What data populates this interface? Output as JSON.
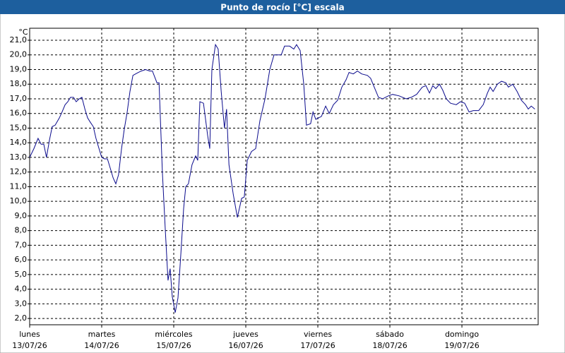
{
  "chart_data": {
    "type": "line",
    "title": "Punto de rocío [°C] escala",
    "y_label": "°C",
    "color": "#0a0a8c",
    "grid": true,
    "xlim": [
      0,
      169.4
    ],
    "ylim": [
      1.57,
      21.82
    ],
    "xticks": [
      {
        "value": 0,
        "label": "lunes",
        "date": "13/07/26"
      },
      {
        "value": 24,
        "label": "martes",
        "date": "14/07/26"
      },
      {
        "value": 48,
        "label": "miércoles",
        "date": "15/07/26"
      },
      {
        "value": 72,
        "label": "jueves",
        "date": "16/07/26"
      },
      {
        "value": 96,
        "label": "viernes",
        "date": "17/07/26"
      },
      {
        "value": 120,
        "label": "sábado",
        "date": "18/07/26"
      },
      {
        "value": 144,
        "label": "domingo",
        "date": "19/07/26"
      }
    ],
    "yticks": [
      {
        "value": 2,
        "label": "2,0"
      },
      {
        "value": 3,
        "label": "3,0"
      },
      {
        "value": 4,
        "label": "4,0"
      },
      {
        "value": 5,
        "label": "5,0"
      },
      {
        "value": 6,
        "label": "6,0"
      },
      {
        "value": 7,
        "label": "7,0"
      },
      {
        "value": 8,
        "label": "8,0"
      },
      {
        "value": 9,
        "label": "9,0"
      },
      {
        "value": 10,
        "label": "10,0"
      },
      {
        "value": 11,
        "label": "11,0"
      },
      {
        "value": 12,
        "label": "12,0"
      },
      {
        "value": 13,
        "label": "13,0"
      },
      {
        "value": 14,
        "label": "14,0"
      },
      {
        "value": 15,
        "label": "15,0"
      },
      {
        "value": 16,
        "label": "16,0"
      },
      {
        "value": 17,
        "label": "17,0"
      },
      {
        "value": 18,
        "label": "18,0"
      },
      {
        "value": 19,
        "label": "19,0"
      },
      {
        "value": 20,
        "label": "20,0"
      },
      {
        "value": 21,
        "label": "21,0"
      }
    ],
    "x": [
      0,
      1.4,
      2.8,
      3.8,
      4.7,
      5.6,
      6.6,
      7.5,
      8.5,
      9.9,
      10.8,
      11.8,
      12.7,
      13.6,
      14.6,
      15.5,
      16.5,
      17.4,
      18.4,
      19.3,
      20.2,
      21.2,
      22.1,
      23.1,
      24.0,
      24.9,
      25.9,
      26.8,
      27.8,
      28.7,
      29.6,
      30.6,
      31.5,
      32.5,
      33.4,
      34.4,
      35.3,
      36.2,
      37.2,
      38.6,
      40.0,
      40.9,
      42.4,
      43.1,
      44.2,
      45.2,
      46.1,
      46.8,
      47.5,
      48.5,
      49.4,
      50.4,
      51.3,
      52.0,
      52.9,
      54.1,
      55.3,
      56.0,
      56.7,
      57.9,
      59.3,
      60.0,
      60.7,
      61.9,
      62.8,
      63.8,
      64.9,
      65.6,
      66.4,
      67.8,
      69.2,
      70.6,
      71.5,
      72.5,
      73.9,
      75.3,
      76.7,
      78.4,
      80.0,
      81.4,
      83.8,
      84.9,
      86.6,
      88.0,
      88.9,
      90.1,
      91.3,
      92.2,
      93.6,
      94.4,
      95.3,
      97.2,
      98.6,
      99.8,
      101.2,
      102.6,
      104.0,
      105.4,
      106.4,
      107.8,
      109.2,
      110.6,
      112.5,
      113.6,
      114.8,
      116.2,
      117.6,
      119.5,
      120.9,
      123.1,
      125.4,
      127.1,
      128.9,
      130.8,
      132.0,
      133.2,
      134.3,
      135.3,
      136.5,
      137.6,
      138.8,
      140.2,
      142.1,
      143.5,
      144.9,
      146.4,
      147.8,
      149.6,
      151.1,
      152.5,
      153.4,
      154.4,
      155.8,
      157.2,
      158.6,
      159.5,
      160.9,
      162.4,
      163.8,
      165.2,
      166.1,
      167.1,
      168.3
    ],
    "values": [
      13.0,
      13.6,
      14.3,
      13.9,
      13.9,
      13.0,
      14.2,
      15.1,
      15.2,
      15.7,
      16.1,
      16.6,
      16.8,
      17.1,
      17.1,
      16.8,
      17.0,
      17.1,
      16.3,
      15.7,
      15.4,
      15.1,
      14.3,
      13.6,
      13.0,
      12.9,
      12.9,
      12.3,
      11.6,
      11.2,
      11.8,
      13.6,
      14.9,
      16.1,
      17.5,
      18.6,
      18.7,
      18.8,
      18.9,
      19.0,
      18.9,
      18.9,
      18.1,
      18.1,
      12.0,
      8.0,
      4.6,
      5.4,
      3.5,
      2.4,
      3.4,
      6.5,
      9.5,
      11.0,
      11.2,
      12.5,
      13.1,
      12.8,
      16.8,
      16.7,
      14.5,
      13.6,
      19.0,
      20.7,
      20.4,
      17.5,
      15.0,
      16.3,
      12.5,
      10.5,
      8.9,
      10.2,
      10.3,
      12.8,
      13.4,
      13.6,
      15.5,
      17.0,
      19.0,
      20.0,
      20.0,
      20.6,
      20.6,
      20.4,
      20.7,
      20.3,
      18.0,
      15.2,
      15.3,
      16.1,
      15.6,
      15.8,
      16.5,
      16.0,
      16.6,
      16.9,
      17.8,
      18.3,
      18.8,
      18.7,
      18.9,
      18.7,
      18.6,
      18.4,
      17.8,
      17.1,
      17.0,
      17.2,
      17.3,
      17.2,
      17.0,
      17.1,
      17.3,
      17.8,
      17.9,
      17.4,
      17.9,
      17.7,
      18.0,
      17.6,
      17.0,
      16.7,
      16.6,
      16.8,
      16.7,
      16.1,
      16.2,
      16.2,
      16.6,
      17.4,
      17.8,
      17.5,
      18.0,
      18.2,
      18.1,
      17.8,
      18.0,
      17.5,
      16.9,
      16.6,
      16.3,
      16.5,
      16.3
    ]
  }
}
